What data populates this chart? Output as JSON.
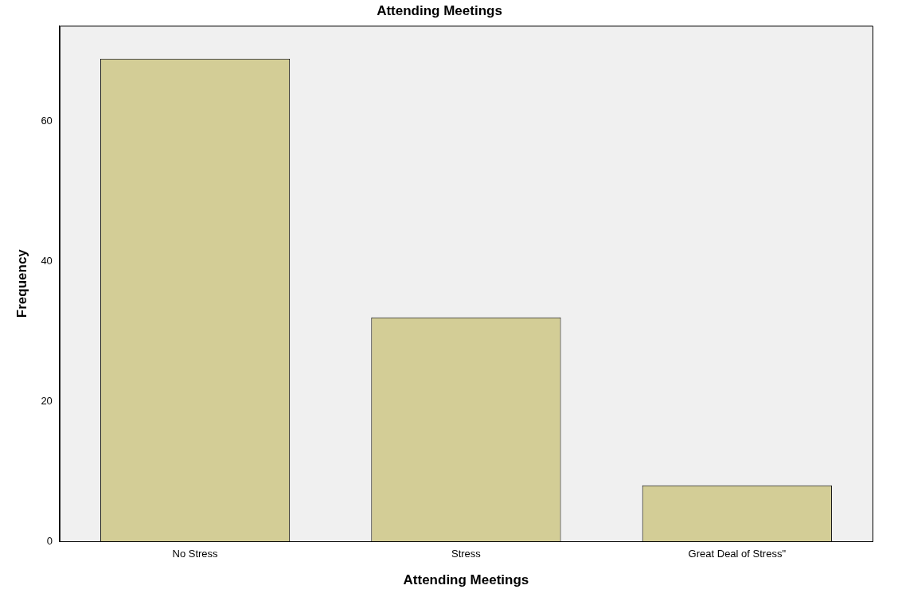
{
  "chart_data": {
    "type": "bar",
    "title": "Attending Meetings",
    "xlabel": "Attending Meetings",
    "ylabel": "Frequency",
    "categories": [
      "No Stress",
      "Stress",
      "Great Deal of Stress\""
    ],
    "values": [
      69,
      32,
      8
    ],
    "color": "#d3cd96",
    "ylim": [
      0,
      73.7
    ],
    "yticks": [
      0,
      20,
      40,
      60
    ],
    "grid": false,
    "legend": false
  }
}
